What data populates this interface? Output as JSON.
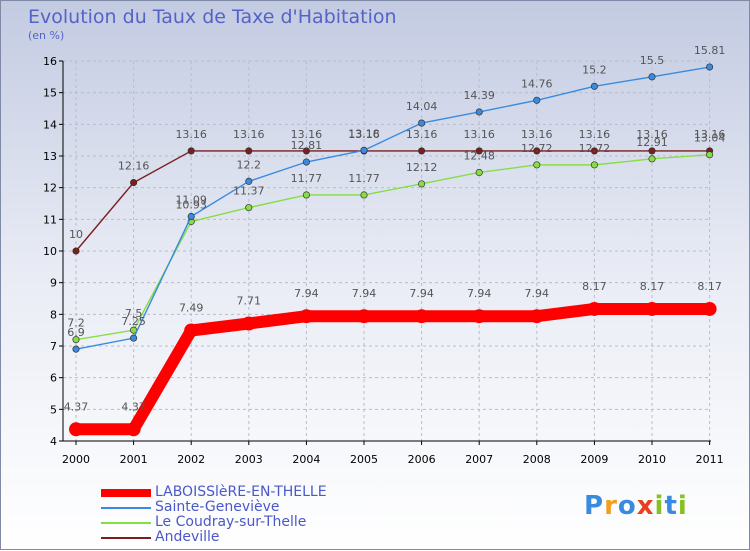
{
  "title": "Evolution du Taux de Taxe d'Habitation",
  "unit": "(en %)",
  "logo": "Proxiti",
  "chart_data": {
    "type": "line",
    "title": "Evolution du Taux de Taxe d'Habitation",
    "ylabel": "(en %)",
    "xlabel": "",
    "x": [
      "2000",
      "2001",
      "2002",
      "2003",
      "2004",
      "2005",
      "2006",
      "2007",
      "2008",
      "2009",
      "2010",
      "2011"
    ],
    "ylim": [
      4,
      16
    ],
    "yticks": [
      "4",
      "5",
      "6",
      "7",
      "8",
      "9",
      "10",
      "11",
      "12",
      "13",
      "14",
      "15",
      "16"
    ],
    "grid": true,
    "legend_position": "bottom-left",
    "series": [
      {
        "name": "LABOISSlèRE-EN-THELLE",
        "color": "#ff0000",
        "values": [
          4.37,
          4.37,
          7.49,
          7.71,
          7.94,
          7.94,
          7.94,
          7.94,
          7.94,
          8.17,
          8.17,
          8.17
        ],
        "labels": [
          "4.37",
          "4.37",
          "7.49",
          "7.71",
          "7.94",
          "7.94",
          "7.94",
          "7.94",
          "7.94",
          "8.17",
          "8.17",
          "8.17"
        ]
      },
      {
        "name": "Sainte-Geneviève",
        "color": "#3a8be0",
        "values": [
          6.9,
          7.25,
          11.09,
          12.2,
          12.81,
          13.18,
          14.04,
          14.39,
          14.76,
          15.2,
          15.5,
          15.81
        ],
        "labels": [
          "6.9",
          "7.25",
          "11.09",
          "12.2",
          "12.81",
          "13.18",
          "14.04",
          "14.39",
          "14.76",
          "15.2",
          "15.5",
          "15.81"
        ]
      },
      {
        "name": "Le Coudray-sur-Thelle",
        "color": "#88dd44",
        "values": [
          7.2,
          7.5,
          10.93,
          11.37,
          11.77,
          11.77,
          12.12,
          12.48,
          12.72,
          12.72,
          12.91,
          13.04
        ],
        "labels": [
          "7.2",
          "7.5",
          "10.93",
          "11.37",
          "11.77",
          "11.77",
          "12.12",
          "12.48",
          "12.72",
          "12.72",
          "12.91",
          "13.04"
        ]
      },
      {
        "name": "Andeville",
        "color": "#7a1f1f",
        "values": [
          10,
          12.16,
          13.16,
          13.16,
          13.16,
          13.16,
          13.16,
          13.16,
          13.16,
          13.16,
          13.16,
          13.16
        ],
        "labels": [
          "10",
          "12.16",
          "13.16",
          "13.16",
          "13.16",
          "13.16",
          "13.16",
          "13.16",
          "13.16",
          "13.16",
          "13.16",
          "13.16"
        ]
      }
    ]
  }
}
